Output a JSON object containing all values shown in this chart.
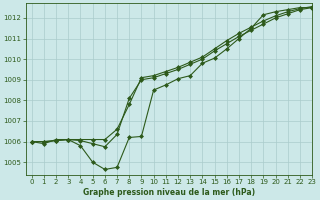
{
  "title": "Graphe pression niveau de la mer (hPa)",
  "bg_color": "#cce8e8",
  "grid_color": "#aacccc",
  "line_color": "#2d5a1b",
  "xlim": [
    -0.5,
    23
  ],
  "ylim": [
    1004.4,
    1012.7
  ],
  "yticks": [
    1005,
    1006,
    1007,
    1008,
    1009,
    1010,
    1011,
    1012
  ],
  "xticks": [
    0,
    1,
    2,
    3,
    4,
    5,
    6,
    7,
    8,
    9,
    10,
    11,
    12,
    13,
    14,
    15,
    16,
    17,
    18,
    19,
    20,
    21,
    22,
    23
  ],
  "series_jagged": [
    1006.0,
    1005.9,
    1006.1,
    1006.1,
    1005.8,
    1005.0,
    1004.65,
    1004.75,
    1006.2,
    1006.25,
    1008.5,
    1008.75,
    1009.05,
    1009.2,
    1009.8,
    1010.05,
    1010.5,
    1011.0,
    1011.5,
    1012.15,
    1012.3,
    1012.4,
    1012.5,
    1012.5
  ],
  "series_upper": [
    1006.0,
    1006.0,
    1006.05,
    1006.1,
    1006.1,
    1006.1,
    1006.1,
    1006.6,
    1007.8,
    1009.1,
    1009.2,
    1009.4,
    1009.6,
    1009.85,
    1010.1,
    1010.5,
    1010.9,
    1011.25,
    1011.55,
    1011.85,
    1012.1,
    1012.3,
    1012.45,
    1012.55
  ],
  "series_mid": [
    1006.0,
    1006.0,
    1006.05,
    1006.1,
    1006.05,
    1005.9,
    1005.75,
    1006.35,
    1008.1,
    1009.0,
    1009.1,
    1009.3,
    1009.5,
    1009.75,
    1010.0,
    1010.4,
    1010.75,
    1011.1,
    1011.4,
    1011.7,
    1012.0,
    1012.2,
    1012.4,
    1012.5
  ],
  "tick_fontsize": 5.0,
  "label_fontsize": 5.5
}
